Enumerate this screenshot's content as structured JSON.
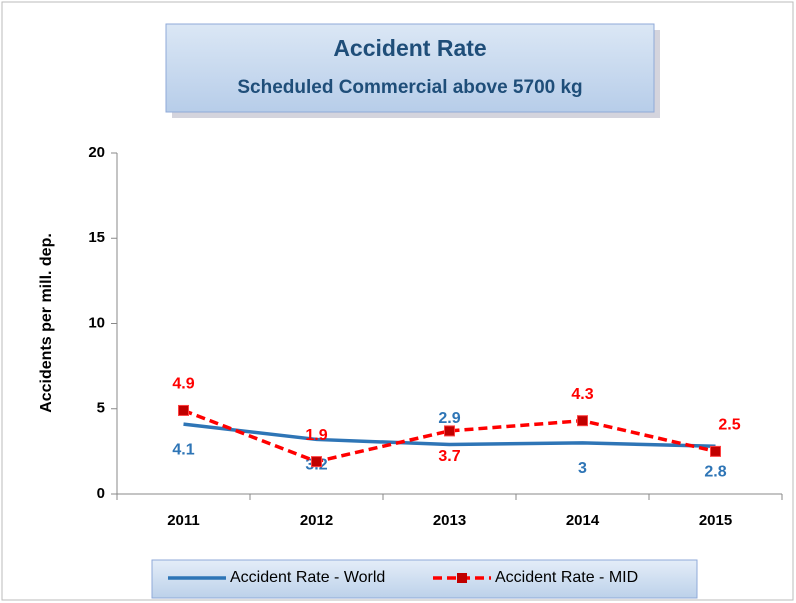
{
  "chart_data": {
    "type": "line",
    "title": "Accident Rate",
    "subtitle": "Scheduled Commercial above 5700 kg",
    "y_label": "Accidents per mill. dep.",
    "categories": [
      "2011",
      "2012",
      "2013",
      "2014",
      "2015"
    ],
    "series": [
      {
        "name": "Accident Rate - World",
        "color": "#2e75b6",
        "values": [
          4.1,
          3.2,
          2.9,
          3,
          2.8
        ]
      },
      {
        "name": "Accident Rate - MID",
        "color": "#ff0000",
        "values": [
          4.9,
          1.9,
          3.7,
          4.3,
          2.5
        ]
      }
    ],
    "ylim": [
      0,
      20
    ],
    "yticks": [
      0,
      5,
      10,
      15,
      20
    ],
    "legend": "bottom"
  }
}
